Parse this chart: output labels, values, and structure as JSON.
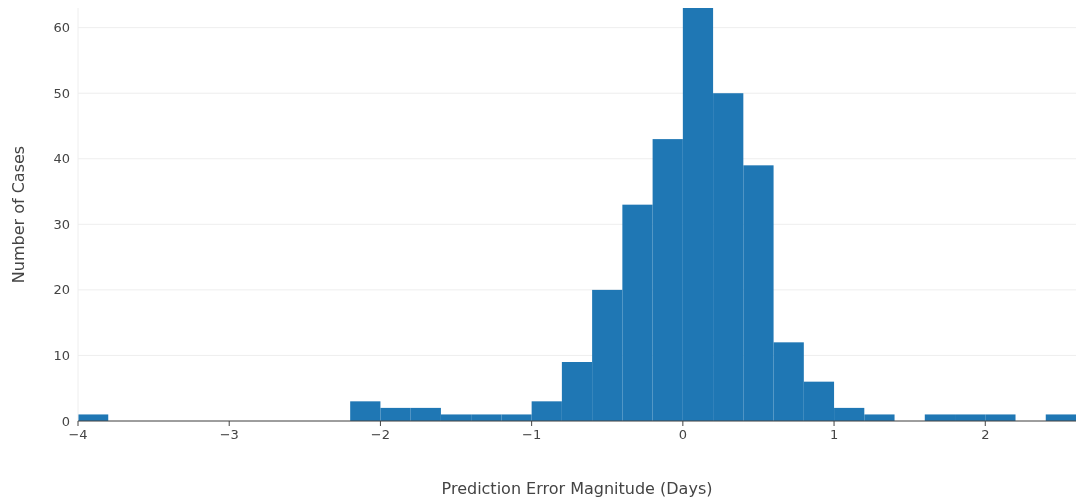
{
  "chart_data": {
    "type": "histogram",
    "xlabel": "Prediction Error Magnitude (Days)",
    "ylabel": "Number of Cases",
    "bins": [
      -4,
      -3.8,
      -3.6,
      -3.4,
      -3.2,
      -3,
      -2.8,
      -2.6,
      -2.4,
      -2.2,
      -2,
      -1.8,
      -1.6,
      -1.4,
      -1.2,
      -1,
      -0.8,
      -0.6,
      -0.4,
      -0.2,
      0,
      0.2,
      0.4,
      0.6,
      0.8,
      1,
      1.2,
      1.4,
      1.6,
      1.8,
      2,
      2.2,
      2.4,
      2.6
    ],
    "values": [
      1,
      0,
      0,
      0,
      0,
      0,
      0,
      0,
      0,
      3,
      2,
      2,
      1,
      1,
      1,
      3,
      9,
      20,
      33,
      43,
      63,
      50,
      39,
      12,
      6,
      2,
      1,
      0,
      1,
      1,
      1,
      0,
      1
    ],
    "color": "#1f77b4",
    "xlim": [
      -4,
      2.6
    ],
    "ylim": [
      0,
      63
    ],
    "xticks": [
      {
        "value": -4,
        "label": "−4"
      },
      {
        "value": -3,
        "label": "−3"
      },
      {
        "value": -2,
        "label": "−2"
      },
      {
        "value": -1,
        "label": "−1"
      },
      0,
      1,
      2
    ],
    "yticks": [
      0,
      10,
      20,
      30,
      40,
      50,
      60
    ],
    "grid": "y"
  }
}
